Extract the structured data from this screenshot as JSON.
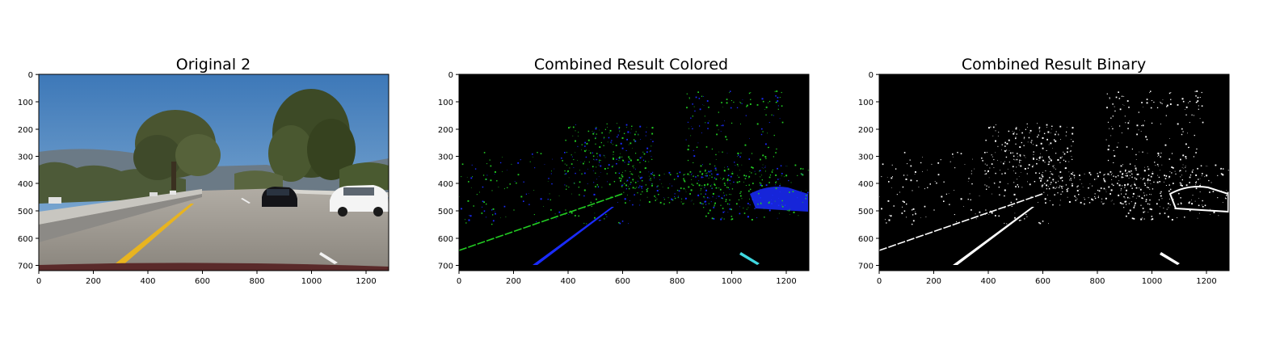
{
  "figure": {
    "panels": [
      {
        "id": "original",
        "title": "Original 2",
        "image": "road-photo",
        "x_ticks": [
          "0",
          "200",
          "400",
          "600",
          "800",
          "1000",
          "1200"
        ],
        "y_ticks": [
          "0",
          "100",
          "200",
          "300",
          "400",
          "500",
          "600",
          "700"
        ]
      },
      {
        "id": "colored",
        "title": "Combined Result Colored",
        "image": "threshold-colored",
        "x_ticks": [
          "0",
          "200",
          "400",
          "600",
          "800",
          "1000",
          "1200"
        ],
        "y_ticks": [
          "0",
          "100",
          "200",
          "300",
          "400",
          "500",
          "600",
          "700"
        ]
      },
      {
        "id": "binary",
        "title": "Combined Result Binary",
        "image": "threshold-binary",
        "x_ticks": [
          "0",
          "200",
          "400",
          "600",
          "800",
          "1000",
          "1200"
        ],
        "y_ticks": [
          "0",
          "100",
          "200",
          "300",
          "400",
          "500",
          "600",
          "700"
        ]
      }
    ],
    "image_size": {
      "width": 1280,
      "height": 720
    },
    "colors": {
      "sky": "#5a92c8",
      "road": "#9a958e",
      "lane_yellow": "#e8b420",
      "tree": "#3f4a2a",
      "edge_green": "#22cc22",
      "edge_blue": "#1a2cff",
      "edge_cyan": "#3fd8e0",
      "background_black": "#000000",
      "binary_white": "#ffffff"
    }
  }
}
